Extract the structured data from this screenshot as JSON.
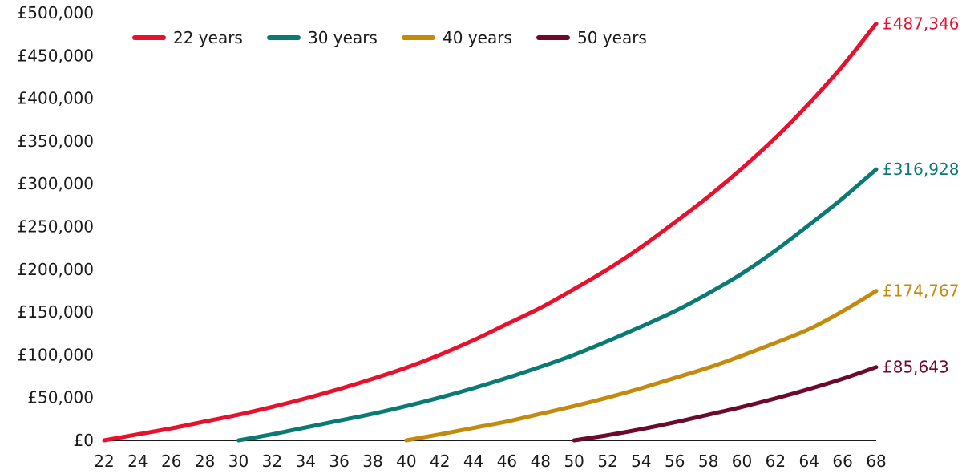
{
  "chart_data": {
    "type": "line",
    "title": "",
    "xlabel": "",
    "ylabel": "",
    "xlim": [
      22,
      68
    ],
    "ylim": [
      0,
      500000
    ],
    "x_ticks": [
      22,
      24,
      26,
      28,
      30,
      32,
      34,
      36,
      38,
      40,
      42,
      44,
      46,
      48,
      50,
      52,
      54,
      56,
      58,
      60,
      62,
      64,
      66,
      68
    ],
    "x_tick_labels": [
      "22",
      "24",
      "26",
      "28",
      "30",
      "32",
      "34",
      "36",
      "38",
      "40",
      "42",
      "44",
      "46",
      "48",
      "50",
      "52",
      "54",
      "56",
      "58",
      "60",
      "62",
      "64",
      "66",
      "68"
    ],
    "y_ticks": [
      0,
      50000,
      100000,
      150000,
      200000,
      250000,
      300000,
      350000,
      400000,
      450000,
      500000
    ],
    "y_tick_labels": [
      "£0",
      "£50,000",
      "£100,000",
      "£150,000",
      "£200,000",
      "£250,000",
      "£300,000",
      "£350,000",
      "£400,000",
      "£450,000",
      "£500,000"
    ],
    "grid": false,
    "legend_position": "top-left",
    "series": [
      {
        "name": "22 years",
        "color": "#e8112d",
        "x": [
          22,
          24,
          26,
          28,
          30,
          32,
          34,
          36,
          38,
          40,
          42,
          44,
          46,
          48,
          50,
          52,
          54,
          56,
          58,
          60,
          62,
          64,
          66,
          68
        ],
        "values": [
          0,
          7000,
          14000,
          22000,
          30000,
          39000,
          49000,
          60000,
          72000,
          85000,
          100000,
          117000,
          136000,
          155000,
          177000,
          200000,
          226000,
          255000,
          285000,
          318000,
          354000,
          394000,
          438000,
          487346
        ],
        "end_label": "£487,346"
      },
      {
        "name": "30 years",
        "color": "#0b7a75",
        "x": [
          30,
          32,
          34,
          36,
          38,
          40,
          42,
          44,
          46,
          48,
          50,
          52,
          54,
          56,
          58,
          60,
          62,
          64,
          66,
          68
        ],
        "values": [
          0,
          7000,
          15000,
          23000,
          31000,
          40000,
          50000,
          61000,
          73000,
          86000,
          100000,
          116000,
          133000,
          151000,
          172000,
          195000,
          222000,
          252000,
          283000,
          316928
        ],
        "end_label": "£316,928"
      },
      {
        "name": "40 years",
        "color": "#c48a0e",
        "x": [
          40,
          42,
          44,
          46,
          48,
          50,
          52,
          54,
          56,
          58,
          60,
          62,
          64,
          66,
          68
        ],
        "values": [
          0,
          7000,
          14500,
          22000,
          31000,
          40000,
          50000,
          61000,
          73000,
          85000,
          99000,
          114000,
          130000,
          151000,
          174767
        ],
        "end_label": "£174,767"
      },
      {
        "name": "50 years",
        "color": "#6d0a2c",
        "x": [
          50,
          52,
          54,
          56,
          58,
          60,
          62,
          64,
          66,
          68
        ],
        "values": [
          0,
          6000,
          13000,
          21000,
          30000,
          39000,
          49000,
          60000,
          72000,
          85643
        ],
        "end_label": "£85,643"
      }
    ]
  }
}
